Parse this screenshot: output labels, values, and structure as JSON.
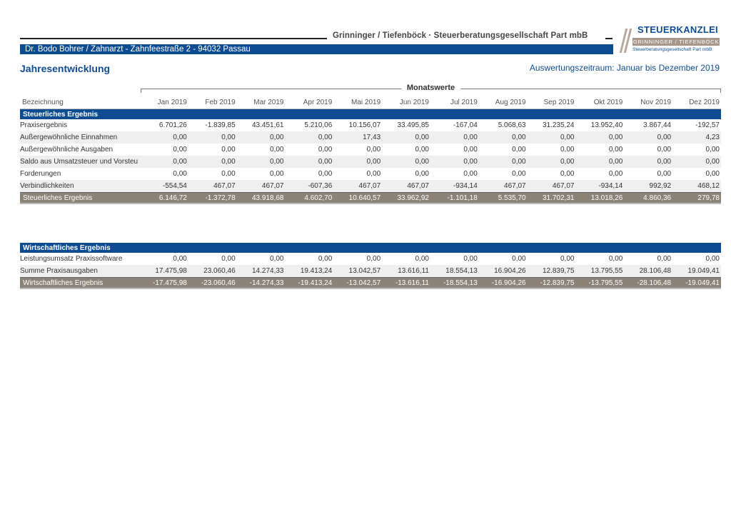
{
  "header": {
    "firm": "Grinninger / Tiefenböck · Steuerberatungsgesellschaft Part mbB",
    "client": "Dr. Bodo Bohrer / Zahnarzt  -  Zahnfeestraße 2  -  94032 Passau",
    "logo_title": "STEUERKANZLEI",
    "logo_band": "GRINNINGER / TIEFENBÖCK",
    "logo_sub": "Steuerberatungsgesellschaft Part mbB",
    "page_title": "Jahresentwicklung",
    "period": "Auswertungszeitraum: Januar bis Dezember 2019",
    "monthly_label": "Monatswerte"
  },
  "columns": {
    "label": "Bezeichnung",
    "months": [
      "Jan 2019",
      "Feb 2019",
      "Mar 2019",
      "Apr 2019",
      "Mai 2019",
      "Jun 2019",
      "Jul 2019",
      "Aug 2019",
      "Sep 2019",
      "Okt 2019",
      "Nov 2019",
      "Dez 2019"
    ]
  },
  "sections": [
    {
      "title": "Steuerliches Ergebnis",
      "rows": [
        {
          "label": "Praxisergebnis",
          "values": [
            "6.701,26",
            "-1.839,85",
            "43.451,61",
            "5.210,06",
            "10.156,07",
            "33.495,85",
            "-167,04",
            "5.068,63",
            "31.235,24",
            "13.952,40",
            "3.867,44",
            "-192,57"
          ]
        },
        {
          "label": "Außergewöhnliche Einnahmen",
          "values": [
            "0,00",
            "0,00",
            "0,00",
            "0,00",
            "17,43",
            "0,00",
            "0,00",
            "0,00",
            "0,00",
            "0,00",
            "0,00",
            "4,23"
          ]
        },
        {
          "label": "Außergewöhnliche Ausgaben",
          "values": [
            "0,00",
            "0,00",
            "0,00",
            "0,00",
            "0,00",
            "0,00",
            "0,00",
            "0,00",
            "0,00",
            "0,00",
            "0,00",
            "0,00"
          ]
        },
        {
          "label": "Saldo aus Umsatzsteuer und Vorsteu",
          "values": [
            "0,00",
            "0,00",
            "0,00",
            "0,00",
            "0,00",
            "0,00",
            "0,00",
            "0,00",
            "0,00",
            "0,00",
            "0,00",
            "0,00"
          ]
        },
        {
          "label": "Forderungen",
          "values": [
            "0,00",
            "0,00",
            "0,00",
            "0,00",
            "0,00",
            "0,00",
            "0,00",
            "0,00",
            "0,00",
            "0,00",
            "0,00",
            "0,00"
          ]
        },
        {
          "label": "Verbindlichkeiten",
          "values": [
            "-554,54",
            "467,07",
            "467,07",
            "-607,36",
            "467,07",
            "467,07",
            "-934,14",
            "467,07",
            "467,07",
            "-934,14",
            "992,92",
            "468,12"
          ]
        }
      ],
      "total": {
        "label": "Steuerliches Ergebnis",
        "values": [
          "6.146,72",
          "-1.372,78",
          "43.918,68",
          "4.602,70",
          "10.640,57",
          "33.962,92",
          "-1.101,18",
          "5.535,70",
          "31.702,31",
          "13.018,26",
          "4.860,36",
          "279,78"
        ]
      }
    },
    {
      "title": "Wirtschaftliches Ergebnis",
      "rows": [
        {
          "label": "Leistungsumsatz Praxissoftware",
          "values": [
            "0,00",
            "0,00",
            "0,00",
            "0,00",
            "0,00",
            "0,00",
            "0,00",
            "0,00",
            "0,00",
            "0,00",
            "0,00",
            "0,00"
          ]
        },
        {
          "label": "Summe Praxisausgaben",
          "values": [
            "17.475,98",
            "23.060,46",
            "14.274,33",
            "19.413,24",
            "13.042,57",
            "13.616,11",
            "18.554,13",
            "16.904,26",
            "12.839,75",
            "13.795,55",
            "28.106,48",
            "19.049,41"
          ]
        }
      ],
      "total": {
        "label": "Wirtschaftliches Ergebnis",
        "values": [
          "-17.475,98",
          "-23.060,46",
          "-14.274,33",
          "-19.413,24",
          "-13.042,57",
          "-13.616,11",
          "-18.554,13",
          "-16.904,26",
          "-12.839,75",
          "-13.795,55",
          "-28.106,48",
          "-19.049,41"
        ]
      }
    }
  ]
}
